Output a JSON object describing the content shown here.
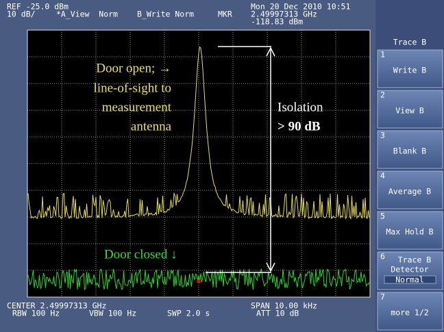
{
  "header": {
    "ref": "REF -25.0 dBm",
    "scale": "10 dB/",
    "trace_a": "*A_View  Norm",
    "trace_b": "B_Write Norm",
    "marker_label": "MKR",
    "marker_freq": "2.49997313 GHz",
    "marker_level": "-118.83 dBm",
    "datetime": "Mon 20 Dec 2010 10:51"
  },
  "footer": {
    "center": "CENTER 2.49997313 GHz",
    "rbw": "RBW 100 Hz",
    "vbw": "VBW 100 Hz",
    "sweep": "SWP 2.0 s",
    "span": "SPAN 10.00 kHz",
    "attenuation": "ATT 10 dB"
  },
  "annotations": {
    "door_open": [
      "Door open; →",
      "line-of-sight to",
      "measurement",
      "antenna"
    ],
    "isolation": "Isolation",
    "isolation_value": "> 90 dB",
    "door_closed": "Door closed ↓"
  },
  "softkeys": {
    "title": "Trace B",
    "keys": [
      {
        "number": "1",
        "label": "Write B"
      },
      {
        "number": "2",
        "label": "View B"
      },
      {
        "number": "3",
        "label": "Blank B"
      },
      {
        "number": "4",
        "label": "Average B"
      },
      {
        "number": "5",
        "label": "Max Hold B"
      },
      {
        "number": "6",
        "label": "Trace B",
        "label2": "Detector",
        "sub": "Normal"
      },
      {
        "number": "7",
        "label": "more 1/2"
      }
    ]
  }
}
